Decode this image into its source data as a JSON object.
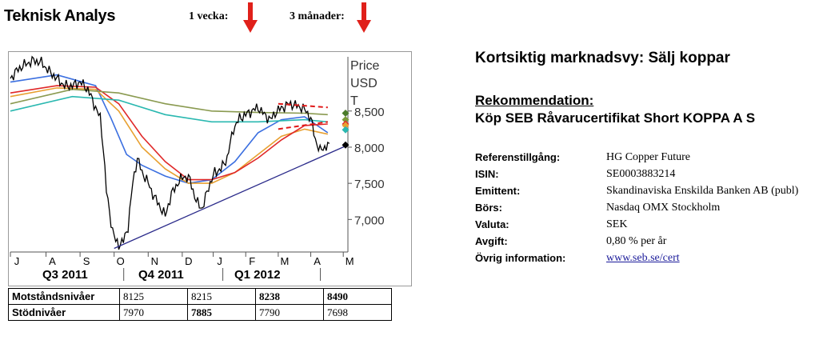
{
  "header": {
    "title": "Teknisk Analys",
    "horizon_1": "1 vecka:",
    "horizon_2": "3 månader:",
    "signal_color": "#e0201a"
  },
  "market_view": {
    "headline": "Kortsiktig marknadsvy: Sälj koppar",
    "recommendation_heading": "Rekommendation:",
    "recommendation": "Köp SEB Råvarucertifikat Short KOPPA A S"
  },
  "product_info": [
    {
      "key": "Referenstillgång:",
      "value": "HG Copper Future"
    },
    {
      "key": "ISIN:",
      "value": "SE0003883214"
    },
    {
      "key": "Emittent:",
      "value": "Skandinaviska Enskilda Banken AB (publ)"
    },
    {
      "key": "Börs:",
      "value": "Nasdaq OMX Stockholm"
    },
    {
      "key": "Valuta:",
      "value": "SEK"
    },
    {
      "key": "Avgift:",
      "value": "0,80 % per år"
    },
    {
      "key": "Övrig information:",
      "value": "www.seb.se/cert"
    }
  ],
  "levels_table": {
    "resistance_label": "Motståndsnivåer",
    "resistance": [
      "8125",
      "8215",
      "8238",
      "8490"
    ],
    "support_label": "Stödnivåer",
    "support": [
      "7970",
      "7885",
      "7790",
      "7698"
    ]
  },
  "chart_data": {
    "type": "line",
    "ylabel": [
      "Price",
      "USD",
      "T"
    ],
    "ylim": [
      6550,
      9250
    ],
    "yticks": [
      7000,
      7500,
      8000,
      8500
    ],
    "ytick_labels": [
      "7,000",
      "7,500",
      "8,000",
      "8,500"
    ],
    "month_labels": [
      "J",
      "A",
      "S",
      "O",
      "N",
      "D",
      "J",
      "F",
      "M",
      "A",
      "M"
    ],
    "month_index": [
      0,
      23,
      45,
      67,
      89,
      111,
      131,
      152,
      173,
      194,
      215
    ],
    "quarter_labels": [
      "Q3 2011",
      "Q4 2011",
      "Q1 2012"
    ],
    "x_max": 218,
    "price": {
      "name": "HG Copper Future",
      "color": "#000000",
      "x": [
        0,
        5,
        10,
        15,
        20,
        25,
        30,
        35,
        40,
        45,
        50,
        55,
        58,
        60,
        62,
        64,
        66,
        68,
        70,
        73,
        76,
        79,
        82,
        85,
        88,
        92,
        96,
        100,
        104,
        108,
        112,
        116,
        120,
        124,
        128,
        132,
        136,
        140,
        144,
        148,
        152,
        156,
        160,
        164,
        168,
        172,
        176,
        180,
        184,
        188,
        191,
        194,
        197,
        200,
        203,
        206
      ],
      "values": [
        8950,
        9080,
        9150,
        9200,
        9170,
        9050,
        8950,
        8850,
        8850,
        8900,
        8800,
        8550,
        8400,
        8000,
        7400,
        7100,
        6850,
        6700,
        6650,
        6700,
        6900,
        7500,
        7850,
        7650,
        7550,
        7350,
        7200,
        7050,
        7350,
        7500,
        7600,
        7550,
        7250,
        7150,
        7450,
        7650,
        7700,
        7850,
        8250,
        8400,
        8450,
        8500,
        8550,
        8450,
        8380,
        8500,
        8550,
        8600,
        8580,
        8550,
        8500,
        8400,
        8100,
        7950,
        8000,
        8050
      ]
    },
    "moving_averages": [
      {
        "color": "#3b6fe0",
        "x": [
          0,
          30,
          55,
          65,
          75,
          85,
          100,
          115,
          130,
          145,
          160,
          175,
          190,
          205
        ],
        "values": [
          8900,
          9000,
          8850,
          8400,
          7900,
          7750,
          7600,
          7500,
          7550,
          7800,
          8200,
          8380,
          8420,
          8200
        ]
      },
      {
        "color": "#e8a030",
        "x": [
          0,
          30,
          55,
          70,
          85,
          100,
          115,
          130,
          145,
          160,
          175,
          190,
          205
        ],
        "values": [
          8700,
          8820,
          8800,
          8500,
          8000,
          7700,
          7500,
          7500,
          7650,
          7900,
          8150,
          8250,
          8180
        ]
      },
      {
        "color": "#e02828",
        "x": [
          0,
          30,
          55,
          70,
          85,
          100,
          115,
          130,
          145,
          160,
          175,
          190,
          205
        ],
        "values": [
          8750,
          8850,
          8830,
          8600,
          8150,
          7800,
          7550,
          7550,
          7650,
          7850,
          8100,
          8300,
          8320
        ]
      },
      {
        "color": "#2ab8b0",
        "x": [
          0,
          40,
          70,
          100,
          130,
          160,
          190,
          205
        ],
        "values": [
          8500,
          8700,
          8650,
          8450,
          8350,
          8350,
          8380,
          8350
        ]
      },
      {
        "color": "#8a9a50",
        "x": [
          0,
          40,
          70,
          100,
          130,
          160,
          190,
          205
        ],
        "values": [
          8600,
          8800,
          8750,
          8600,
          8500,
          8480,
          8470,
          8450
        ]
      }
    ],
    "trendline": {
      "color": "#2a2a8a",
      "x": [
        67,
        218
      ],
      "values": [
        6600,
        8030
      ]
    },
    "resistance_channel": {
      "color": "#e01818",
      "x": [
        173,
        205
      ],
      "upper": [
        8600,
        8550
      ],
      "lower": [
        8250,
        8350
      ]
    },
    "markers": [
      {
        "value": 8470,
        "color": "#4a7a2a"
      },
      {
        "value": 8380,
        "color": "#7a9a3a"
      },
      {
        "value": 8320,
        "color": "#e02828"
      },
      {
        "value": 8300,
        "color": "#e8a030"
      },
      {
        "value": 8240,
        "color": "#2ab8b0"
      },
      {
        "value": 8030,
        "color": "#000000"
      }
    ]
  }
}
